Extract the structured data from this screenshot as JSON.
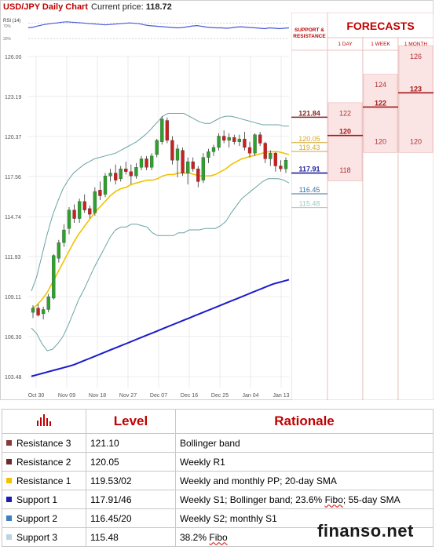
{
  "header": {
    "title": "USD/JPY Daily Chart",
    "price_label": "Current price:",
    "price_value": "118.72"
  },
  "rsi": {
    "label": "RSI (14)",
    "levels": [
      "70%",
      "30%"
    ],
    "values": [
      58,
      60,
      63,
      66,
      68,
      70,
      71,
      73,
      74,
      73,
      72,
      71,
      70,
      69,
      68,
      67,
      66,
      67,
      68,
      69,
      70,
      71,
      70,
      69,
      66,
      64,
      63,
      62,
      61,
      60,
      59,
      58,
      59,
      61,
      63,
      64,
      62,
      60,
      59,
      58,
      58,
      57,
      58,
      60,
      61,
      60,
      59,
      58,
      57,
      56,
      58,
      57,
      56,
      57,
      58
    ]
  },
  "chart_data": {
    "type": "candlestick",
    "title": "USD/JPY Daily Chart",
    "y_axis_labels": [
      "126.00",
      "123.19",
      "120.37",
      "117.56",
      "114.74",
      "111.93",
      "109.11",
      "106.30",
      "103.48"
    ],
    "x_axis_labels": [
      "Oct 30",
      "Nov 09",
      "Nov 18",
      "Nov 27",
      "Dec 07",
      "Dec 16",
      "Dec 25",
      "Jan 04",
      "Jan 13"
    ],
    "ylim": [
      103.48,
      126.0
    ],
    "candles": [
      [
        108.0,
        108.5,
        107.6,
        108.3
      ],
      [
        108.3,
        108.6,
        107.7,
        107.8
      ],
      [
        107.9,
        108.4,
        107.5,
        108.2
      ],
      [
        108.2,
        109.3,
        108.0,
        109.1
      ],
      [
        109.0,
        112.1,
        108.9,
        112.0
      ],
      [
        111.8,
        113.1,
        111.5,
        112.9
      ],
      [
        112.9,
        114.2,
        112.6,
        113.8
      ],
      [
        113.9,
        115.4,
        113.5,
        115.2
      ],
      [
        115.2,
        115.6,
        114.3,
        114.6
      ],
      [
        114.6,
        116.0,
        114.3,
        115.8
      ],
      [
        115.8,
        116.3,
        115.0,
        115.2
      ],
      [
        115.3,
        115.5,
        114.6,
        114.9
      ],
      [
        115.0,
        116.8,
        114.8,
        116.5
      ],
      [
        116.6,
        117.2,
        115.9,
        116.2
      ],
      [
        116.3,
        117.8,
        116.1,
        117.6
      ],
      [
        117.6,
        118.1,
        117.2,
        117.8
      ],
      [
        117.8,
        118.4,
        117.0,
        117.3
      ],
      [
        117.4,
        118.3,
        117.2,
        118.1
      ],
      [
        118.1,
        118.6,
        117.7,
        117.9
      ],
      [
        117.9,
        118.4,
        117.0,
        117.6
      ],
      [
        117.6,
        118.5,
        117.4,
        118.2
      ],
      [
        118.2,
        119.0,
        118.0,
        118.8
      ],
      [
        118.8,
        119.0,
        118.0,
        118.2
      ],
      [
        118.2,
        119.2,
        118.0,
        119.0
      ],
      [
        119.1,
        120.2,
        118.9,
        120.1
      ],
      [
        120.0,
        121.8,
        119.8,
        121.6
      ],
      [
        121.5,
        121.7,
        119.9,
        120.1
      ],
      [
        120.1,
        120.4,
        118.4,
        118.7
      ],
      [
        118.7,
        119.8,
        117.5,
        119.5
      ],
      [
        119.4,
        119.6,
        117.6,
        117.8
      ],
      [
        117.8,
        118.9,
        117.0,
        118.6
      ],
      [
        118.6,
        118.9,
        117.9,
        118.1
      ],
      [
        118.1,
        118.3,
        116.8,
        117.2
      ],
      [
        117.3,
        119.2,
        117.1,
        118.9
      ],
      [
        118.9,
        119.5,
        118.5,
        119.3
      ],
      [
        119.3,
        119.8,
        119.0,
        119.6
      ],
      [
        119.6,
        120.6,
        119.4,
        120.4
      ],
      [
        120.4,
        120.8,
        119.9,
        120.1
      ],
      [
        120.1,
        120.6,
        119.6,
        120.3
      ],
      [
        120.3,
        120.5,
        119.8,
        120.0
      ],
      [
        120.0,
        120.5,
        119.7,
        120.2
      ],
      [
        120.2,
        120.7,
        119.4,
        119.6
      ],
      [
        119.6,
        120.0,
        118.9,
        119.2
      ],
      [
        119.2,
        120.6,
        119.0,
        120.5
      ],
      [
        120.5,
        120.7,
        119.7,
        119.9
      ],
      [
        119.9,
        120.0,
        118.5,
        118.8
      ],
      [
        118.8,
        119.4,
        118.3,
        119.2
      ],
      [
        119.2,
        119.3,
        117.9,
        118.3
      ],
      [
        118.3,
        118.7,
        117.9,
        118.1
      ],
      [
        118.1,
        118.9,
        117.8,
        118.7
      ]
    ],
    "series": [
      {
        "name": "20-day SMA",
        "values": [
          108.2,
          108.5,
          108.9,
          109.4,
          110.1,
          110.8,
          111.5,
          112.2,
          112.9,
          113.5,
          114.0,
          114.5,
          115.0,
          115.4,
          115.8,
          116.2,
          116.5,
          116.7,
          116.8,
          117.0,
          117.1,
          117.2,
          117.3,
          117.3,
          117.4,
          117.6,
          117.7,
          117.7,
          117.8,
          117.8,
          117.8,
          117.7,
          117.6,
          117.6,
          117.6,
          117.7,
          117.9,
          118.1,
          118.4,
          118.6,
          118.8,
          118.9,
          119.0,
          119.1,
          119.2,
          119.3,
          119.3,
          119.3,
          119.2,
          119.1
        ]
      },
      {
        "name": "Upper Bollinger band",
        "values": [
          109.5,
          110.5,
          112.0,
          113.5,
          114.8,
          115.8,
          116.7,
          117.3,
          117.8,
          118.1,
          118.4,
          118.6,
          118.8,
          118.9,
          119.0,
          119.1,
          119.2,
          119.4,
          119.6,
          119.8,
          120.0,
          120.3,
          120.6,
          121.0,
          121.4,
          121.8,
          122.0,
          122.0,
          122.0,
          122.0,
          121.8,
          121.6,
          121.4,
          121.3,
          121.3,
          121.5,
          121.7,
          121.8,
          121.8,
          121.7,
          121.6,
          121.5,
          121.4,
          121.3,
          121.2,
          121.2,
          121.2,
          121.2,
          121.1,
          121.1
        ]
      },
      {
        "name": "Lower Bollinger band",
        "values": [
          106.9,
          106.5,
          105.8,
          105.3,
          105.4,
          105.8,
          106.3,
          107.1,
          108.0,
          108.9,
          109.6,
          110.4,
          111.2,
          111.9,
          112.6,
          113.3,
          113.8,
          114.0,
          114.0,
          114.2,
          114.2,
          114.1,
          114.0,
          113.6,
          113.4,
          113.4,
          113.4,
          113.4,
          113.6,
          113.6,
          113.8,
          113.8,
          113.8,
          113.9,
          113.9,
          113.9,
          114.1,
          114.4,
          115.0,
          115.5,
          116.0,
          116.3,
          116.6,
          116.9,
          117.2,
          117.4,
          117.4,
          117.4,
          117.3,
          117.1
        ]
      },
      {
        "name": "55-day SMA",
        "values": [
          103.5,
          103.6,
          103.7,
          103.8,
          103.9,
          104.0,
          104.1,
          104.2,
          104.3,
          104.45,
          104.6,
          104.75,
          104.9,
          105.05,
          105.2,
          105.35,
          105.5,
          105.65,
          105.8,
          105.95,
          106.1,
          106.25,
          106.4,
          106.55,
          106.7,
          106.85,
          107.0,
          107.15,
          107.3,
          107.45,
          107.6,
          107.75,
          107.9,
          108.05,
          108.2,
          108.35,
          108.5,
          108.65,
          108.8,
          108.95,
          109.1,
          109.25,
          109.4,
          109.55,
          109.7,
          109.85,
          110.0,
          110.1,
          110.2,
          110.3
        ]
      }
    ]
  },
  "levels_panel": {
    "header": "SUPPORT & RESISTANCE",
    "levels": [
      {
        "text": "121.84",
        "color": "#7f1f1f"
      },
      {
        "text": "120.05",
        "color": "#d4a62a"
      },
      {
        "text": "119.43",
        "color": "#d4a62a"
      },
      {
        "text": "117.91",
        "color": "#1c1c9c"
      },
      {
        "text": "116.45",
        "color": "#3b6ea5"
      },
      {
        "text": "115.48",
        "color": "#9ec9c4"
      }
    ]
  },
  "forecasts": {
    "title": "FORECASTS",
    "columns": [
      {
        "label": "1 DAY",
        "top": "122",
        "mid": "120",
        "bottom": "118"
      },
      {
        "label": "1 WEEK",
        "top": "124",
        "mid": "122",
        "bottom": "120"
      },
      {
        "label": "1 MONTH",
        "top": "126",
        "mid": "123",
        "bottom": "120"
      }
    ]
  },
  "table": {
    "headers": [
      "Level",
      "Rationale"
    ],
    "rows": [
      {
        "name": "Resistance 3",
        "level": "121.10",
        "rationale": "Bollinger band",
        "color": "#8b3a3a"
      },
      {
        "name": "Resistance 2",
        "level": "120.05",
        "rationale": "Weekly R1",
        "color": "#6e2a2a"
      },
      {
        "name": "Resistance 1",
        "level": "119.53/02",
        "rationale": "Weekly and monthly PP; 20-day SMA",
        "color": "#f2c200"
      },
      {
        "name": "Support 1",
        "level": "117.91/46",
        "rationale_pre": "Weekly S1; Bollinger band; 23.6% ",
        "rationale_fibo": "Fibo",
        "rationale_post": "; 55-day SMA",
        "color": "#1b1bb8"
      },
      {
        "name": "Support 2",
        "level": "116.45/20",
        "rationale": "Weekly S2; monthly S1",
        "color": "#3f7fbf"
      },
      {
        "name": "Support 3",
        "level": "115.48",
        "rationale_pre": "38.2% ",
        "rationale_fibo": "Fibo",
        "rationale_post": "",
        "color": "#bcd3e4"
      }
    ]
  },
  "brand": "finanso.net"
}
